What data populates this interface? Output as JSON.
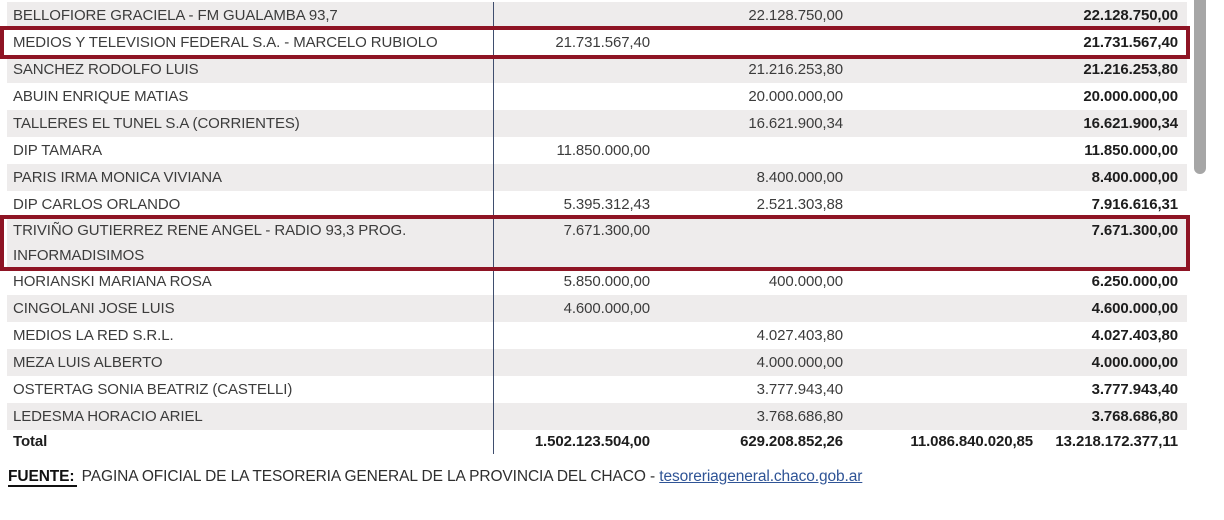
{
  "table": {
    "rows": [
      {
        "name": "BELLOFIORE GRACIELA - FM GUALAMBA 93,7",
        "c1": "",
        "c2": "22.128.750,00",
        "c3": "",
        "total": "22.128.750,00",
        "highlighted": false,
        "two_line": false
      },
      {
        "name": "MEDIOS Y TELEVISION FEDERAL S.A. - MARCELO RUBIOLO",
        "c1": "21.731.567,40",
        "c2": "",
        "c3": "",
        "total": "21.731.567,40",
        "highlighted": true,
        "two_line": false
      },
      {
        "name": "SANCHEZ RODOLFO LUIS",
        "c1": "",
        "c2": "21.216.253,80",
        "c3": "",
        "total": "21.216.253,80",
        "highlighted": false,
        "two_line": false
      },
      {
        "name": "ABUIN ENRIQUE MATIAS",
        "c1": "",
        "c2": "20.000.000,00",
        "c3": "",
        "total": "20.000.000,00",
        "highlighted": false,
        "two_line": false
      },
      {
        "name": "TALLERES EL TUNEL S.A (CORRIENTES)",
        "c1": "",
        "c2": "16.621.900,34",
        "c3": "",
        "total": "16.621.900,34",
        "highlighted": false,
        "two_line": false
      },
      {
        "name": "DIP TAMARA",
        "c1": "11.850.000,00",
        "c2": "",
        "c3": "",
        "total": "11.850.000,00",
        "highlighted": false,
        "two_line": false
      },
      {
        "name": "PARIS IRMA MONICA VIVIANA",
        "c1": "",
        "c2": "8.400.000,00",
        "c3": "",
        "total": "8.400.000,00",
        "highlighted": false,
        "two_line": false
      },
      {
        "name": "DIP CARLOS ORLANDO",
        "c1": "5.395.312,43",
        "c2": "2.521.303,88",
        "c3": "",
        "total": "7.916.616,31",
        "highlighted": false,
        "two_line": false
      },
      {
        "name": "TRIVIÑO GUTIERREZ RENE ANGEL - RADIO 93,3 PROG. INFORMADISIMOS",
        "c1": "7.671.300,00",
        "c2": "",
        "c3": "",
        "total": "7.671.300,00",
        "highlighted": true,
        "two_line": true
      },
      {
        "name": "HORIANSKI MARIANA ROSA",
        "c1": "5.850.000,00",
        "c2": "400.000,00",
        "c3": "",
        "total": "6.250.000,00",
        "highlighted": false,
        "two_line": false
      },
      {
        "name": "CINGOLANI JOSE LUIS",
        "c1": "4.600.000,00",
        "c2": "",
        "c3": "",
        "total": "4.600.000,00",
        "highlighted": false,
        "two_line": false
      },
      {
        "name": "MEDIOS LA RED S.R.L.",
        "c1": "",
        "c2": "4.027.403,80",
        "c3": "",
        "total": "4.027.403,80",
        "highlighted": false,
        "two_line": false
      },
      {
        "name": "MEZA LUIS ALBERTO",
        "c1": "",
        "c2": "4.000.000,00",
        "c3": "",
        "total": "4.000.000,00",
        "highlighted": false,
        "two_line": false
      },
      {
        "name": "OSTERTAG SONIA BEATRIZ (CASTELLI)",
        "c1": "",
        "c2": "3.777.943,40",
        "c3": "",
        "total": "3.777.943,40",
        "highlighted": false,
        "two_line": false
      },
      {
        "name": "LEDESMA HORACIO ARIEL",
        "c1": "",
        "c2": "3.768.686,80",
        "c3": "",
        "total": "3.768.686,80",
        "highlighted": false,
        "two_line": false
      }
    ],
    "total_row": {
      "label": "Total",
      "c1": "1.502.123.504,00",
      "c2": "629.208.852,26",
      "c3": "11.086.840.020,85",
      "total": "13.218.172.377,11"
    }
  },
  "footer": {
    "source_label": "FUENTE:",
    "source_text": " PAGINA OFICIAL DE LA TESORERIA GENERAL DE LA PROVINCIA DEL CHACO - ",
    "link_text": "tesoreriageneral.chaco.gob.ar"
  },
  "colors": {
    "highlight_border": "#8e1424",
    "row_alt": "#eeecec",
    "divider": "#3f4e6e",
    "text": "#3c3c3c",
    "text_strong": "#1d1d1d",
    "link": "#2f5496",
    "scrollbar": "#a6a6a6"
  }
}
